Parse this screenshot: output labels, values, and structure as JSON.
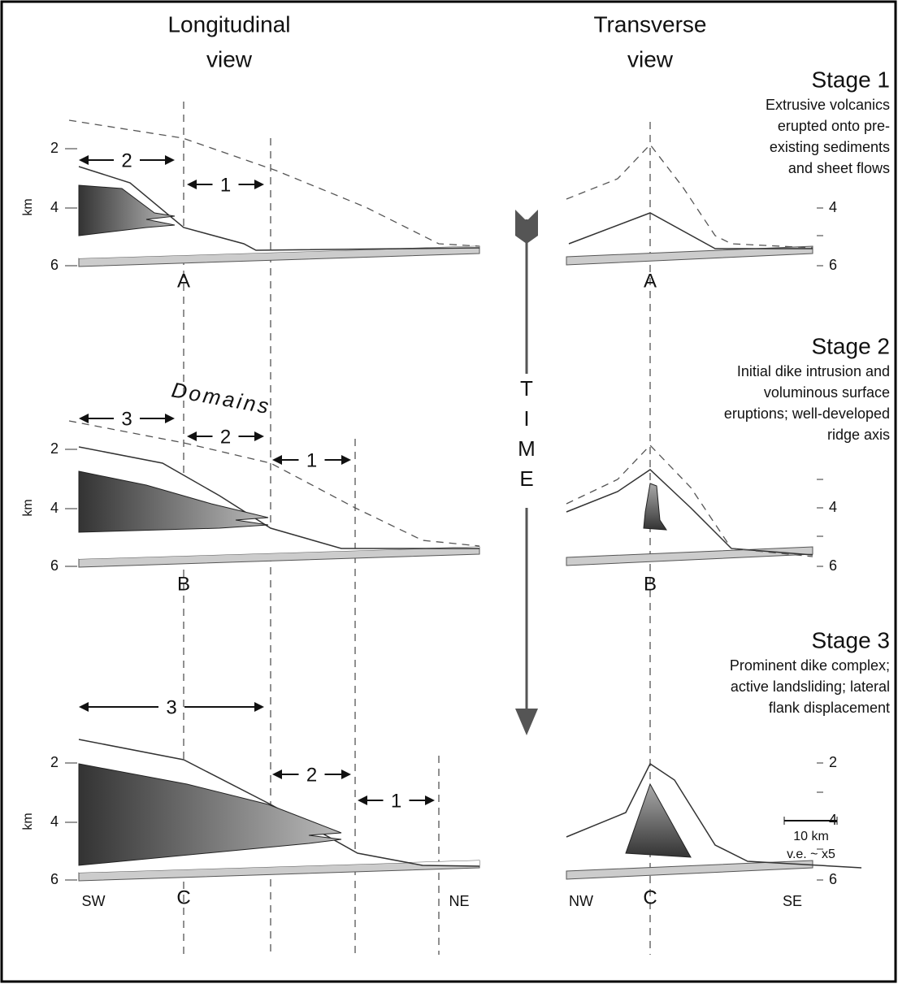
{
  "headers": {
    "longitudinal": [
      "Longitudinal",
      "view"
    ],
    "transverse": [
      "Transverse",
      "view"
    ]
  },
  "depth_axis": {
    "label": "km",
    "ticks": [
      "2",
      "4",
      "6"
    ]
  },
  "stages": [
    {
      "title": "Stage 1",
      "description": [
        "Extrusive volcanics",
        "erupted onto pre-",
        "existing sediments",
        "and sheet flows"
      ],
      "marker": "A",
      "domains": [
        "2",
        "1"
      ],
      "transverse_ticks": [
        "4",
        "6"
      ]
    },
    {
      "title": "Stage 2",
      "description": [
        "Initial dike intrusion and",
        "voluminous surface",
        "eruptions; well-developed",
        "ridge axis"
      ],
      "marker": "B",
      "domains": [
        "3",
        "2",
        "1"
      ],
      "transverse_ticks": [
        "4",
        "6"
      ]
    },
    {
      "title": "Stage 3",
      "description": [
        "Prominent dike complex;",
        "active landsliding; lateral",
        "flank displacement"
      ],
      "marker": "C",
      "domains": [
        "3",
        "2",
        "1"
      ],
      "transverse_ticks": [
        "2",
        "4",
        "6"
      ]
    }
  ],
  "domains_label": "Domains",
  "time": [
    "T",
    "I",
    "M",
    "E"
  ],
  "directions": {
    "sw": "SW",
    "ne": "NE",
    "nw": "NW",
    "se": "SE"
  },
  "scale": {
    "length": "10 km",
    "exaggeration": "v.e. ~ x5"
  }
}
